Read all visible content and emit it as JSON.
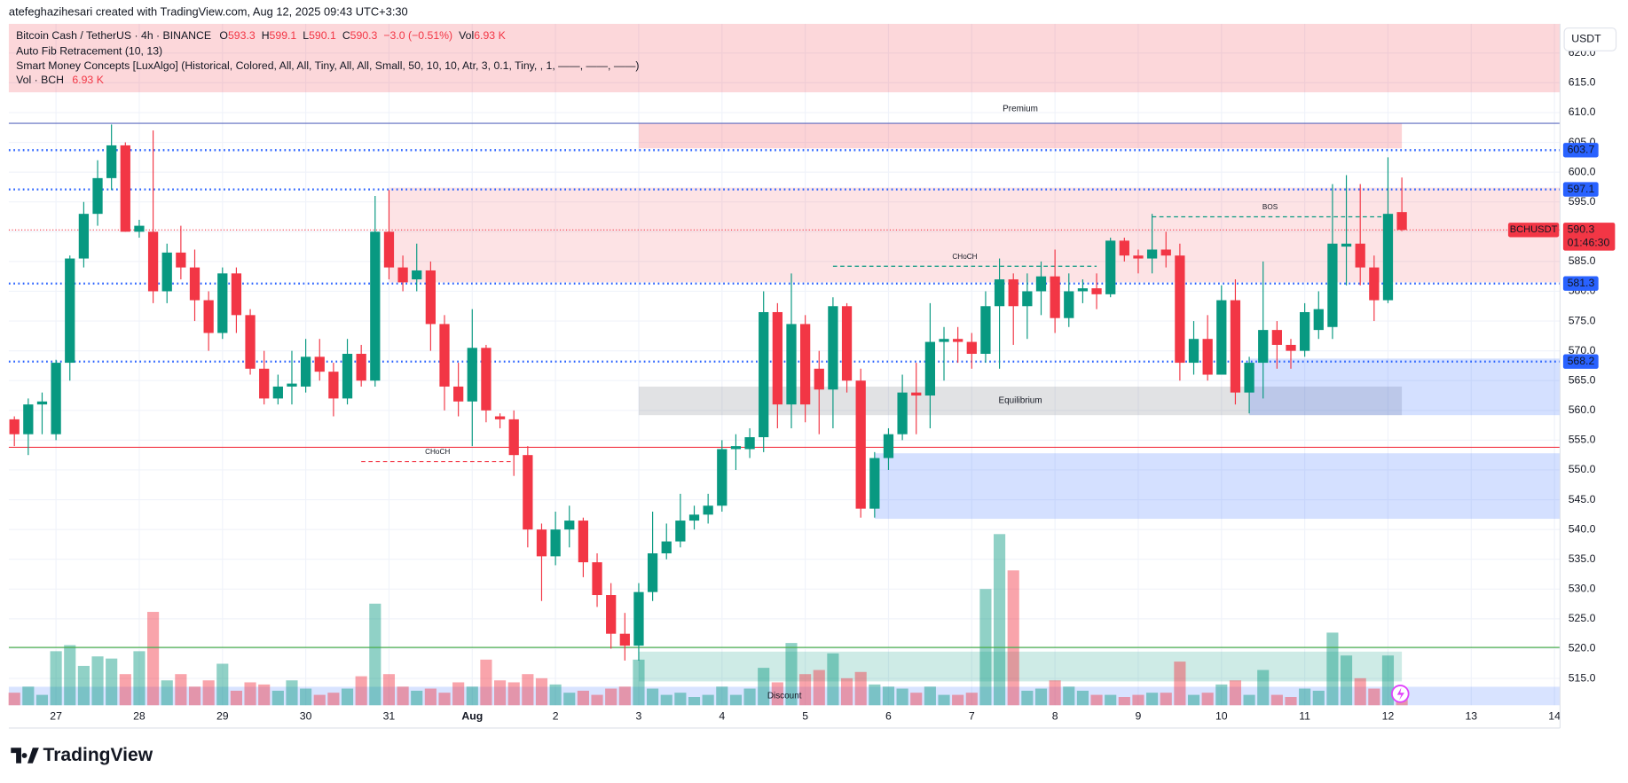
{
  "chart_data": {
    "type": "candlestick",
    "credit": "atefeghazihesari created with TradingView.com, Aug 12, 2025 09:43 UTC+3:30",
    "legend": {
      "symbol": "Bitcoin Cash / TetherUS · 4h · BINANCE",
      "o": "O",
      "h": "H",
      "l": "L",
      "c": "C",
      "change": "−3.0 (−0.51%)",
      "vol": "Vol"
    },
    "indicators": [
      "Auto Fib Retracement (10, 13)",
      "Smart Money Concepts [LuxAlgo] (Historical, Colored, All, All, Tiny, All, All, Small, 50, 10, 10, Atr, 3, 0.1, Tiny, , 1, ——, ——, ——)"
    ],
    "volume_legend": "Vol · BCH",
    "volume_unit": "K",
    "currency": "USDT",
    "symbol_tag": "BCHUSDT",
    "countdown": "01:46:30",
    "brand": "TradingView",
    "up_color": "#089981",
    "down_color": "#f23645",
    "open": [
      558.5,
      556,
      561,
      556,
      568,
      585.5,
      593,
      599,
      604.5,
      590,
      590,
      580,
      586.5,
      584,
      578.5,
      573,
      583,
      576,
      567,
      562,
      564,
      564,
      569,
      566.5,
      562,
      569.5,
      565,
      590,
      584,
      582,
      583.5,
      574.5,
      564,
      561.5,
      570.5,
      559,
      558.5,
      552.5,
      540,
      535.5,
      540,
      541.5,
      534.5,
      529,
      522.5,
      520.5,
      529.5,
      536,
      538,
      541.5,
      542.5,
      544,
      553.5,
      553.5,
      555.5,
      576.5,
      561,
      574.5,
      567,
      563.5,
      577.5,
      565,
      543.5,
      552,
      556,
      563,
      562.5,
      571.5,
      572,
      571.5,
      569.5,
      577.5,
      582,
      577.5,
      580,
      582.5,
      575.5,
      580,
      580.5,
      579.5,
      588.5,
      586,
      585.5,
      587,
      586,
      568,
      572,
      566,
      578.5,
      563,
      568,
      573.5,
      571,
      570,
      573.5,
      574,
      587.5,
      588,
      584,
      578.5,
      593.3
    ],
    "high": [
      559,
      562,
      563,
      568.5,
      586,
      595,
      602,
      608,
      605,
      592,
      607,
      588,
      591,
      587,
      580,
      584,
      584,
      577,
      570,
      566,
      570,
      572,
      572,
      568,
      572,
      571,
      596,
      597,
      586,
      588,
      585,
      576,
      568,
      577,
      571,
      559.5,
      560,
      554,
      541,
      543,
      544,
      542,
      536,
      531,
      526,
      531,
      543,
      541,
      546,
      544,
      546,
      555,
      556,
      557,
      580,
      578,
      583,
      576,
      570,
      579,
      578,
      567,
      553,
      557,
      566,
      568,
      578,
      574,
      574,
      573,
      580,
      585.5,
      583,
      583,
      585,
      587,
      583,
      582,
      583,
      589,
      589,
      587,
      593,
      590,
      588,
      575,
      576,
      581,
      582,
      569,
      585,
      575,
      572,
      578,
      580,
      598,
      599.5,
      598,
      586,
      602.5,
      599.1
    ],
    "low": [
      554,
      552.5,
      556,
      555,
      565,
      584,
      591,
      597,
      590,
      589,
      578,
      578,
      582,
      575,
      570,
      572,
      573,
      566,
      561,
      561,
      561,
      563,
      565,
      559,
      561,
      564,
      564,
      582,
      580,
      580,
      570,
      560,
      559,
      554,
      558,
      557,
      549,
      537,
      528,
      534,
      537,
      532,
      527,
      520,
      518,
      518,
      528,
      535,
      537,
      540,
      541,
      543,
      550,
      552,
      553,
      557,
      557,
      558,
      556,
      557,
      563,
      542,
      542,
      550,
      555,
      556,
      557,
      565,
      568,
      567,
      568,
      567,
      571,
      572,
      576,
      573,
      574,
      578,
      577,
      579,
      585,
      583,
      583,
      584,
      565,
      566,
      565,
      566,
      561,
      559.5,
      562,
      567,
      567,
      569,
      572,
      572,
      581,
      581,
      575,
      578,
      590.1
    ],
    "close": [
      556,
      561,
      561.5,
      568,
      585.5,
      593,
      599,
      604.5,
      590,
      591,
      580,
      586.5,
      584,
      578.5,
      573,
      583,
      576,
      567,
      562,
      564,
      564.5,
      569,
      566.5,
      562,
      569.5,
      565,
      590,
      584,
      581.5,
      583.5,
      574.5,
      564,
      561.5,
      570.5,
      560,
      558.5,
      552.5,
      540,
      535.5,
      540,
      541.5,
      534.5,
      529,
      522.5,
      520.5,
      529.5,
      536,
      538,
      541.5,
      542.5,
      544,
      553.5,
      554,
      555.5,
      576.5,
      561,
      574.5,
      561,
      563.5,
      577.5,
      565,
      543.5,
      552,
      556,
      563,
      562.5,
      571.5,
      572,
      571.5,
      569.5,
      577.5,
      582,
      577.5,
      580,
      582.5,
      575.5,
      580,
      580.5,
      579.5,
      588.5,
      586,
      585.5,
      587,
      586,
      568,
      572,
      566,
      578.5,
      563,
      568,
      573.5,
      571,
      570,
      576.5,
      577,
      588,
      588,
      584,
      578.5,
      593,
      590.3
    ],
    "volume": [
      7.0,
      10.4,
      5.8,
      30.2,
      33.6,
      22.0,
      27.3,
      26.1,
      17.4,
      30.2,
      52.2,
      13.9,
      17.4,
      10.4,
      13.9,
      23.2,
      8.1,
      12.8,
      11.6,
      8.1,
      13.9,
      9.3,
      5.8,
      7.0,
      9.3,
      16.2,
      56.8,
      17.4,
      10.4,
      8.1,
      9.3,
      7.0,
      12.8,
      10.4,
      25.5,
      13.9,
      12.8,
      17.4,
      15.1,
      11.6,
      7.0,
      8.1,
      5.8,
      9.3,
      10.4,
      25.5,
      9.3,
      5.8,
      7.0,
      4.6,
      5.8,
      10.4,
      5.8,
      9.3,
      20.9,
      12.8,
      34.8,
      17.4,
      19.7,
      29.0,
      15.1,
      18.6,
      11.6,
      10.4,
      9.3,
      7.0,
      10.4,
      5.8,
      5.8,
      7.0,
      65.0,
      95.7,
      75.4,
      8.1,
      9.3,
      13.9,
      10.4,
      8.1,
      5.8,
      5.8,
      4.6,
      5.8,
      7.0,
      7.0,
      24.4,
      5.8,
      7.0,
      11.6,
      13.9,
      5.8,
      19.7,
      5.8,
      4.6,
      9.3,
      8.1,
      40.6,
      27.8,
      15.1,
      9.3,
      27.8,
      6.93
    ],
    "ylim": [
      510.5,
      624.9
    ],
    "yticks": [
      {
        "value": 515,
        "label": "515.0"
      },
      {
        "value": 520,
        "label": "520.0"
      },
      {
        "value": 525,
        "label": "525.0"
      },
      {
        "value": 530,
        "label": "530.0"
      },
      {
        "value": 535,
        "label": "535.0"
      },
      {
        "value": 540,
        "label": "540.0"
      },
      {
        "value": 545,
        "label": "545.0"
      },
      {
        "value": 550,
        "label": "550.0"
      },
      {
        "value": 555,
        "label": "555.0"
      },
      {
        "value": 560,
        "label": "560.0"
      },
      {
        "value": 565,
        "label": "565.0"
      },
      {
        "value": 570,
        "label": "570.0"
      },
      {
        "value": 575,
        "label": "575.0"
      },
      {
        "value": 580,
        "label": "580.0"
      },
      {
        "value": 585,
        "label": "585.0"
      },
      {
        "value": 590,
        "label": "590.0"
      },
      {
        "value": 595,
        "label": "595.0"
      },
      {
        "value": 600,
        "label": "600.0"
      },
      {
        "value": 605,
        "label": "605.0"
      },
      {
        "value": 610,
        "label": "610.0"
      },
      {
        "value": 615,
        "label": "615.0"
      },
      {
        "value": 620,
        "label": "620.0"
      }
    ],
    "xlim": [
      -0.4,
      111.4
    ],
    "xticks": [
      {
        "value": 3,
        "label": "27"
      },
      {
        "value": 9,
        "label": "28"
      },
      {
        "value": 15,
        "label": "29"
      },
      {
        "value": 21,
        "label": "30"
      },
      {
        "value": 27,
        "label": "31"
      },
      {
        "value": 33,
        "label": "Aug"
      },
      {
        "value": 39,
        "label": "2"
      },
      {
        "value": 45,
        "label": "3"
      },
      {
        "value": 51,
        "label": "4"
      },
      {
        "value": 57,
        "label": "5"
      },
      {
        "value": 63,
        "label": "6"
      },
      {
        "value": 69,
        "label": "7"
      },
      {
        "value": 75,
        "label": "8"
      },
      {
        "value": 81,
        "label": "9"
      },
      {
        "value": 87,
        "label": "10"
      },
      {
        "value": 93,
        "label": "11"
      },
      {
        "value": 99,
        "label": "12"
      },
      {
        "value": 105,
        "label": "13"
      },
      {
        "value": 111,
        "label": "14"
      }
    ],
    "grid": true,
    "levels": [
      603.7,
      597.1,
      581.3,
      568.2
    ],
    "level_color": "#2962ff",
    "lines": [
      {
        "value": 608.2,
        "color": "#5b6abf"
      },
      {
        "value": 553.8,
        "color": "#f23645"
      },
      {
        "value": 520.2,
        "color": "#4caf50"
      }
    ],
    "zones": [
      {
        "from": 45,
        "to": 100,
        "top": 608.2,
        "bottom": 604.0,
        "color": "rgba(242,54,69,0.22)",
        "label": "Premium",
        "label_color": "#f23645"
      },
      {
        "from": 27,
        "to": 111.4,
        "top": 597.4,
        "bottom": 581.5,
        "color": "rgba(242,54,69,0.14)"
      },
      {
        "from": 45,
        "to": 100,
        "top": 564.0,
        "bottom": 559.2,
        "color": "rgba(120,123,134,0.22)",
        "label": "Equilibrium",
        "label_color": "#9598a1"
      },
      {
        "from": 89,
        "to": 111.4,
        "top": 568.7,
        "bottom": 559.2,
        "color": "rgba(41,98,255,0.2)"
      },
      {
        "from": 62,
        "to": 111.4,
        "top": 552.8,
        "bottom": 541.8,
        "color": "rgba(41,98,255,0.2)"
      },
      {
        "from": 45,
        "to": 100,
        "top": 519.5,
        "bottom": 514.5,
        "color": "rgba(8,153,129,0.2)"
      },
      {
        "from": -0.4,
        "to": 111.4,
        "top": 513.6,
        "bottom": 510.5,
        "color": "rgba(41,98,255,0.18)",
        "label": "Discount",
        "label_color": "#2962ff"
      }
    ],
    "structures": [
      {
        "label": "CHoCH",
        "value": 551.4,
        "from": 25,
        "to": 36,
        "color": "#f23645"
      },
      {
        "label": "CHoCH",
        "value": 584.2,
        "from": 59,
        "to": 78,
        "color": "#089981"
      },
      {
        "label": "BOS",
        "value": 592.5,
        "from": 82,
        "to": 99,
        "color": "#089981"
      }
    ]
  }
}
